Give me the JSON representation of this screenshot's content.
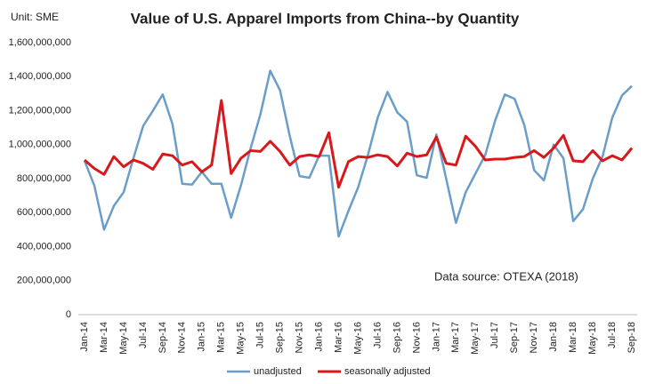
{
  "chart_data": {
    "type": "line",
    "title": "Value of U.S. Apparel Imports from China--by Quantity",
    "unit_label": "Unit: SME",
    "annotation": "Data source: OTEXA (2018)",
    "categories": [
      "Jan-14",
      null,
      "Mar-14",
      null,
      "May-14",
      null,
      "Jul-14",
      null,
      "Sep-14",
      null,
      "Nov-14",
      null,
      "Jan-15",
      null,
      "Mar-15",
      null,
      "May-15",
      null,
      "Jul-15",
      null,
      "Sep-15",
      null,
      "Nov-15",
      null,
      "Jan-16",
      null,
      "Mar-16",
      null,
      "May-16",
      null,
      "Jul-16",
      null,
      "Sep-16",
      null,
      "Nov-16",
      null,
      "Jan-17",
      null,
      "Mar-17",
      null,
      "May-17",
      null,
      "Jul-17",
      null,
      "Sep-17",
      null,
      "Nov-17",
      null,
      "Jan-18",
      null,
      "Mar-18",
      null,
      "May-18",
      null,
      "Jul-18",
      null,
      "Sep-18"
    ],
    "series": [
      {
        "name": "unadjusted",
        "color": "#6a9ec9",
        "values": [
          905000000,
          760000000,
          500000000,
          640000000,
          720000000,
          920000000,
          1110000000,
          1200000000,
          1295000000,
          1120000000,
          770000000,
          765000000,
          840000000,
          770000000,
          770000000,
          570000000,
          760000000,
          980000000,
          1180000000,
          1435000000,
          1320000000,
          1050000000,
          815000000,
          805000000,
          935000000,
          935000000,
          460000000,
          610000000,
          750000000,
          940000000,
          1160000000,
          1310000000,
          1190000000,
          1135000000,
          820000000,
          805000000,
          1060000000,
          800000000,
          540000000,
          720000000,
          830000000,
          940000000,
          1140000000,
          1295000000,
          1270000000,
          1115000000,
          850000000,
          790000000,
          1000000000,
          920000000,
          550000000,
          620000000,
          800000000,
          930000000,
          1160000000,
          1290000000,
          1345000000
        ]
      },
      {
        "name": "seasonally adjusted",
        "color": "#d7191c",
        "values": [
          910000000,
          860000000,
          825000000,
          930000000,
          870000000,
          910000000,
          890000000,
          855000000,
          945000000,
          935000000,
          880000000,
          900000000,
          840000000,
          880000000,
          1260000000,
          830000000,
          920000000,
          965000000,
          960000000,
          1020000000,
          960000000,
          880000000,
          930000000,
          940000000,
          930000000,
          1070000000,
          750000000,
          900000000,
          930000000,
          925000000,
          940000000,
          930000000,
          875000000,
          950000000,
          930000000,
          940000000,
          1045000000,
          890000000,
          880000000,
          1050000000,
          990000000,
          910000000,
          915000000,
          915000000,
          925000000,
          930000000,
          965000000,
          925000000,
          980000000,
          1055000000,
          905000000,
          900000000,
          965000000,
          905000000,
          935000000,
          910000000,
          980000000
        ]
      }
    ],
    "ylim": [
      0,
      1600000000
    ],
    "yticks": [
      0,
      {
        "value": 200000000,
        "label": "200,000,000"
      },
      {
        "value": 400000000,
        "label": "400,000,000"
      },
      {
        "value": 600000000,
        "label": "600,000,000"
      },
      {
        "value": 800000000,
        "label": "800,000,000"
      },
      {
        "value": 1000000000,
        "label": "1,000,000,000"
      },
      {
        "value": 1200000000,
        "label": "1,200,000,000"
      },
      {
        "value": 1400000000,
        "label": "1,400,000,000"
      },
      {
        "value": 1600000000,
        "label": "1,600,000,000"
      }
    ],
    "grid": false,
    "legend": "bottom"
  }
}
